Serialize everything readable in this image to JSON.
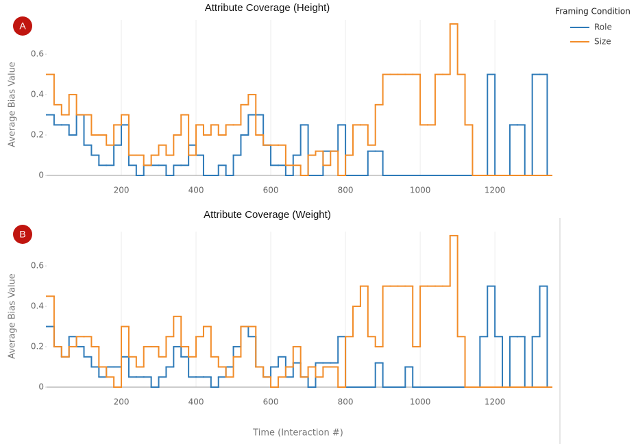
{
  "chart_data": [
    {
      "type": "line",
      "title": "Attribute Coverage (Height)",
      "annotation": "A",
      "ylabel": "Average Bias Value",
      "legend_title": "Framing Condition",
      "x": [
        0,
        20,
        40,
        60,
        80,
        100,
        120,
        140,
        160,
        180,
        200,
        220,
        240,
        260,
        280,
        300,
        320,
        340,
        360,
        380,
        400,
        420,
        440,
        460,
        480,
        500,
        520,
        540,
        560,
        580,
        600,
        620,
        640,
        660,
        680,
        700,
        720,
        740,
        760,
        780,
        800,
        820,
        840,
        860,
        880,
        900,
        920,
        940,
        960,
        980,
        1000,
        1020,
        1040,
        1060,
        1080,
        1100,
        1120,
        1140,
        1160,
        1180,
        1200,
        1220,
        1240,
        1260,
        1280,
        1300,
        1320,
        1340
      ],
      "series": [
        {
          "name": "Role",
          "color": "#2e7ab8",
          "values": [
            0.3,
            0.25,
            0.25,
            0.2,
            0.3,
            0.15,
            0.1,
            0.05,
            0.05,
            0.15,
            0.25,
            0.05,
            0,
            0.05,
            0.05,
            0.05,
            0,
            0.05,
            0.05,
            0.15,
            0.1,
            0,
            0,
            0.05,
            0,
            0.1,
            0.2,
            0.3,
            0.3,
            0.15,
            0.05,
            0.05,
            0,
            0.1,
            0.25,
            0,
            0,
            0.12,
            0.12,
            0.25,
            0,
            0,
            0,
            0.12,
            0.12,
            0,
            0,
            0,
            0,
            0,
            0,
            0,
            0,
            0,
            0,
            0,
            0,
            0,
            0,
            0.5,
            0,
            0,
            0.25,
            0.25,
            0,
            0.5,
            0.5,
            0
          ]
        },
        {
          "name": "Size",
          "color": "#f28c28",
          "values": [
            0.5,
            0.35,
            0.3,
            0.4,
            0.3,
            0.3,
            0.2,
            0.2,
            0.15,
            0.25,
            0.3,
            0.1,
            0.1,
            0.05,
            0.1,
            0.15,
            0.1,
            0.2,
            0.3,
            0.1,
            0.25,
            0.2,
            0.25,
            0.2,
            0.25,
            0.25,
            0.35,
            0.4,
            0.2,
            0.15,
            0.15,
            0.15,
            0.05,
            0.05,
            0,
            0.1,
            0.12,
            0.05,
            0.12,
            0,
            0.1,
            0.25,
            0.25,
            0.15,
            0.35,
            0.5,
            0.5,
            0.5,
            0.5,
            0.5,
            0.25,
            0.25,
            0.5,
            0.5,
            0.75,
            0.5,
            0.25,
            0,
            0,
            0,
            0,
            0,
            0,
            0,
            0,
            0,
            0,
            0
          ]
        }
      ],
      "xlim": [
        0,
        1352
      ],
      "xticks": [
        200,
        400,
        600,
        800,
        1000,
        1200
      ],
      "ylim": [
        0,
        0.77
      ],
      "yticks": [
        0,
        0.2,
        0.4,
        0.6
      ],
      "grid": true
    },
    {
      "type": "line",
      "title": "Attribute Coverage (Weight)",
      "annotation": "B",
      "ylabel": "Average Bias Value",
      "xlabel": "Time (Interaction #)",
      "x": [
        0,
        20,
        40,
        60,
        80,
        100,
        120,
        140,
        160,
        180,
        200,
        220,
        240,
        260,
        280,
        300,
        320,
        340,
        360,
        380,
        400,
        420,
        440,
        460,
        480,
        500,
        520,
        540,
        560,
        580,
        600,
        620,
        640,
        660,
        680,
        700,
        720,
        740,
        760,
        780,
        800,
        820,
        840,
        860,
        880,
        900,
        920,
        940,
        960,
        980,
        1000,
        1020,
        1040,
        1060,
        1080,
        1100,
        1120,
        1140,
        1160,
        1180,
        1200,
        1220,
        1240,
        1260,
        1280,
        1300,
        1320,
        1340
      ],
      "series": [
        {
          "color": "#2e7ab8",
          "values": [
            0.3,
            0.2,
            0.15,
            0.25,
            0.2,
            0.15,
            0.1,
            0.05,
            0.1,
            0.1,
            0.15,
            0.05,
            0.05,
            0.05,
            0,
            0.05,
            0.1,
            0.2,
            0.15,
            0.05,
            0.05,
            0.05,
            0,
            0.05,
            0.1,
            0.2,
            0.3,
            0.25,
            0.1,
            0.05,
            0.1,
            0.15,
            0.05,
            0.12,
            0.05,
            0,
            0.12,
            0.12,
            0.12,
            0.25,
            0,
            0,
            0,
            0,
            0.12,
            0,
            0,
            0,
            0.1,
            0,
            0,
            0,
            0,
            0,
            0,
            0,
            0,
            0,
            0.25,
            0.5,
            0.25,
            0,
            0.25,
            0.25,
            0,
            0.25,
            0.5,
            0
          ]
        },
        {
          "color": "#f28c28",
          "values": [
            0.45,
            0.2,
            0.15,
            0.2,
            0.25,
            0.25,
            0.2,
            0.1,
            0.05,
            0,
            0.3,
            0.15,
            0.1,
            0.2,
            0.2,
            0.15,
            0.25,
            0.35,
            0.2,
            0.15,
            0.25,
            0.3,
            0.15,
            0.1,
            0.05,
            0.15,
            0.3,
            0.3,
            0.1,
            0.05,
            0,
            0.05,
            0.1,
            0.2,
            0.05,
            0.1,
            0.05,
            0.1,
            0.1,
            0,
            0.25,
            0.4,
            0.5,
            0.25,
            0.2,
            0.5,
            0.5,
            0.5,
            0.5,
            0.2,
            0.5,
            0.5,
            0.5,
            0.5,
            0.75,
            0.25,
            0,
            0,
            0,
            0,
            0,
            0,
            0,
            0,
            0,
            0,
            0,
            0
          ]
        }
      ],
      "xlim": [
        0,
        1352
      ],
      "xticks": [
        200,
        400,
        600,
        800,
        1000,
        1200
      ],
      "ylim": [
        0,
        0.77
      ],
      "yticks": [
        0,
        0.2,
        0.4,
        0.6
      ],
      "grid": true
    }
  ]
}
